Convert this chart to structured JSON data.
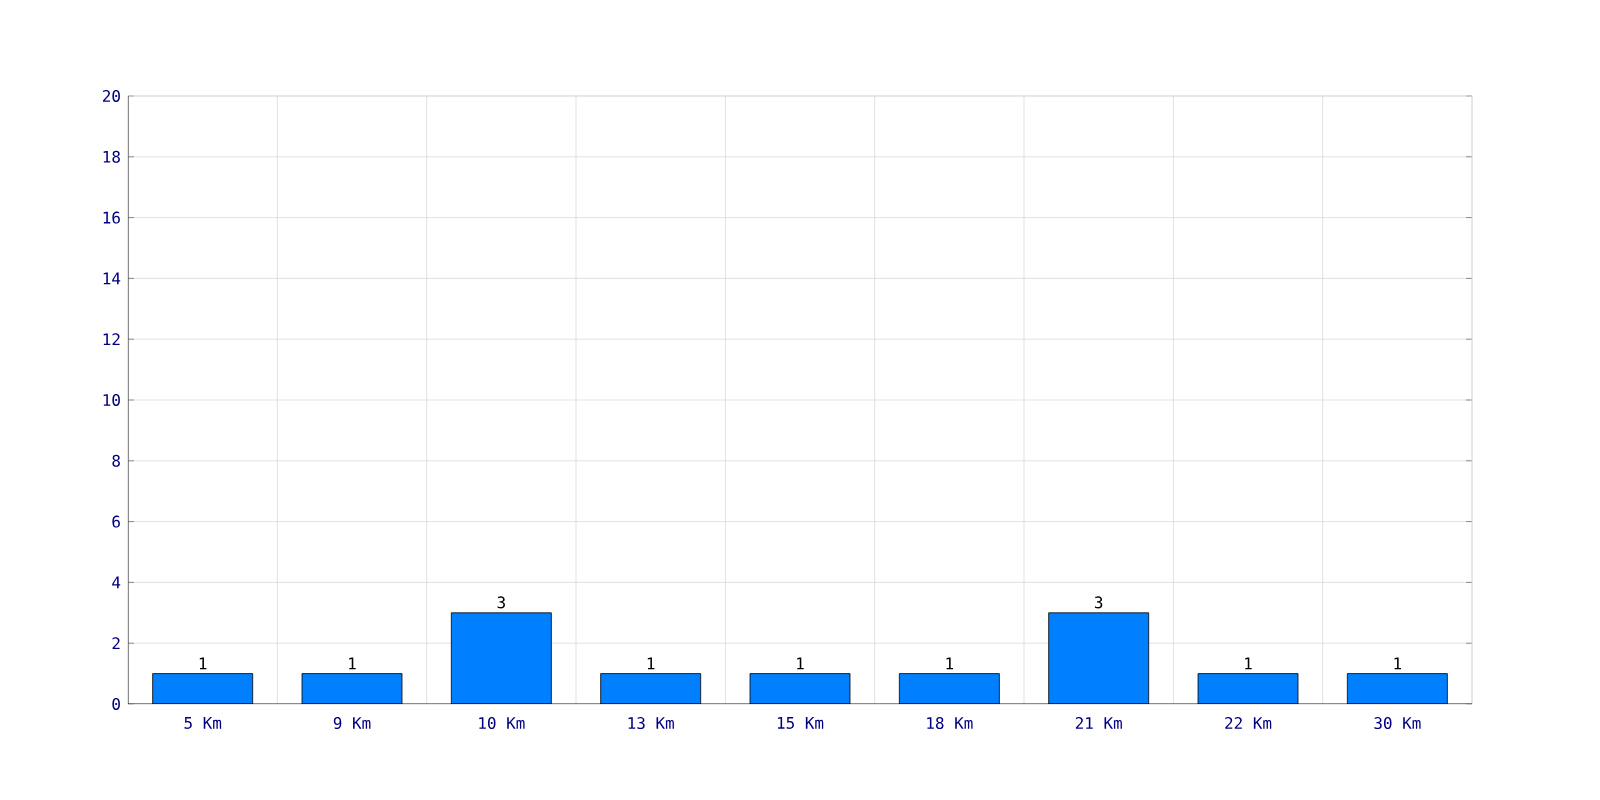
{
  "chart_data": {
    "type": "bar",
    "categories": [
      "5 Km",
      "9 Km",
      "10 Km",
      "13 Km",
      "15 Km",
      "18 Km",
      "21 Km",
      "22 Km",
      "30 Km"
    ],
    "values": [
      1,
      1,
      3,
      1,
      1,
      1,
      3,
      1,
      1
    ],
    "color": "#0080ff",
    "ylim": [
      0,
      20
    ],
    "yticks": [
      0,
      2,
      4,
      6,
      8,
      10,
      12,
      14,
      16,
      18,
      20
    ],
    "grid": true,
    "data_labels": true
  }
}
